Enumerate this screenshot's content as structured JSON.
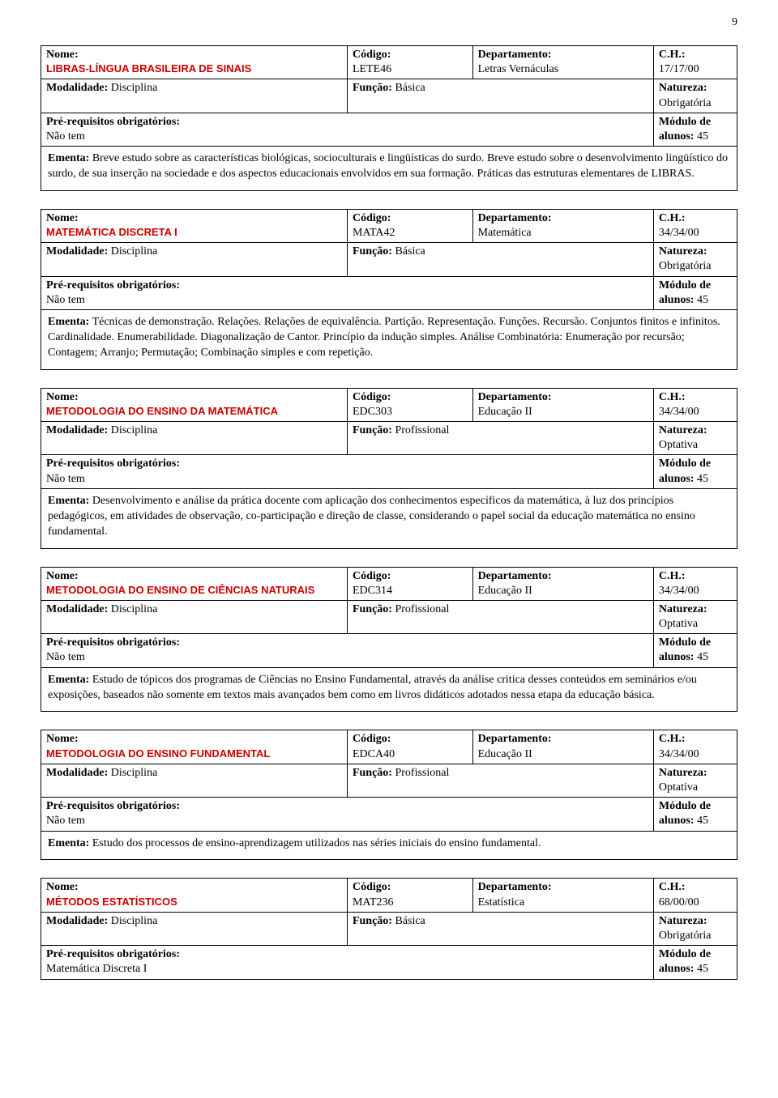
{
  "page_number": "9",
  "labels": {
    "nome": "Nome:",
    "codigo": "Código:",
    "departamento": "Departamento:",
    "ch": "C.H.:",
    "modalidade": "Modalidade:",
    "funcao": "Função:",
    "natureza": "Natureza:",
    "prereq": "Pré-requisitos obrigatórios:",
    "modulo": "Módulo de alunos:",
    "ementa": "Ementa:"
  },
  "colors": {
    "title_red": "#cc0000",
    "border": "#000000",
    "text": "#000000",
    "background": "#ffffff"
  },
  "courses": [
    {
      "title": "LIBRAS-LÍNGUA BRASILEIRA DE SINAIS",
      "codigo": "LETE46",
      "departamento": "Letras Vernáculas",
      "ch": "17/17/00",
      "modalidade": "Disciplina",
      "funcao": "Básica",
      "natureza": "Obrigatória",
      "prereq": "Não tem",
      "modulo": "45",
      "ementa": "Breve estudo sobre as características biológicas, socioculturais e lingüísticas do surdo. Breve estudo sobre o desenvolvimento lingüístico do surdo, de sua inserção na sociedade e dos aspectos educacionais envolvidos em sua formação. Práticas das estruturas elementares de LIBRAS."
    },
    {
      "title": "MATEMÁTICA DISCRETA I",
      "codigo": "MATA42",
      "departamento": "Matemática",
      "ch": "34/34/00",
      "modalidade": "Disciplina",
      "funcao": "Básica",
      "natureza": "Obrigatória",
      "prereq": "Não tem",
      "modulo": "45",
      "ementa": "Técnicas de demonstração. Relações. Relações de equivalência. Partição. Representação. Funções. Recursão. Conjuntos finitos e infinitos. Cardinalidade. Enumerabilidade. Diagonalização de Cantor. Princípio da indução simples. Análise Combinatória: Enumeração por recursão; Contagem; Arranjo; Permutação; Combinação simples e com repetição."
    },
    {
      "title": "METODOLOGIA DO ENSINO DA MATEMÁTICA",
      "codigo": "EDC303",
      "departamento": "Educação II",
      "ch": "34/34/00",
      "modalidade": "Disciplina",
      "funcao": "Profissional",
      "natureza": "Optativa",
      "prereq": "Não tem",
      "modulo": "45",
      "ementa": "Desenvolvimento e análise da prática docente com aplicação dos conhecimentos específicos da matemática, à luz dos princípios pedagógicos, em atividades de observação, co-participação e direção de classe, considerando o papel social da educação matemática no ensino fundamental."
    },
    {
      "title": "METODOLOGIA DO ENSINO DE CIÊNCIAS NATURAIS",
      "codigo": "EDC314",
      "departamento": "Educação II",
      "ch": "34/34/00",
      "modalidade": "Disciplina",
      "funcao": "Profissional",
      "natureza": "Optativa",
      "prereq": "Não tem",
      "modulo": "45",
      "ementa": "Estudo de tópicos dos programas de Ciências no Ensino Fundamental, através da análise critica desses conteúdos em seminários e/ou exposições, baseados não somente em textos mais avançados bem como em livros didáticos adotados nessa etapa da educação básica."
    },
    {
      "title": "METODOLOGIA DO ENSINO FUNDAMENTAL",
      "codigo": "EDCA40",
      "departamento": "Educação II",
      "ch": "34/34/00",
      "modalidade": "Disciplina",
      "funcao": "Profissional",
      "natureza": "Optativa",
      "prereq": "Não tem",
      "modulo": "45",
      "ementa": "Estudo dos processos de ensino-aprendizagem utilizados nas séries iniciais do ensino fundamental."
    },
    {
      "title": "MÉTODOS  ESTATÍSTICOS",
      "codigo": "MAT236",
      "departamento": "Estatística",
      "ch": "68/00/00",
      "modalidade": "Disciplina",
      "funcao": "Básica",
      "natureza": "Obrigatória",
      "prereq": "Matemática Discreta I",
      "modulo": "45",
      "ementa": ""
    }
  ]
}
